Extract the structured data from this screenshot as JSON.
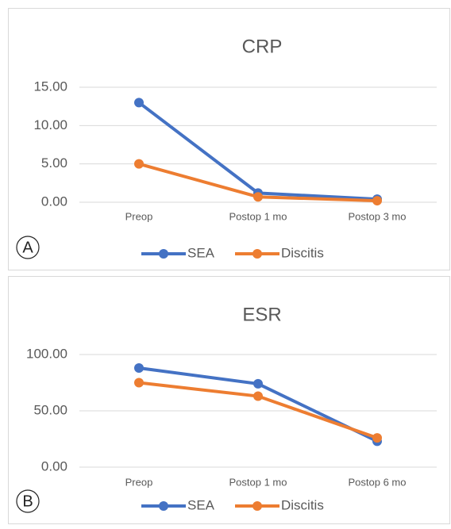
{
  "chart_data": [
    {
      "type": "line",
      "title": "CRP",
      "panel": "A",
      "categories": [
        "Preop",
        "Postop 1 mo",
        "Postop 3 mo"
      ],
      "series": [
        {
          "name": "SEA",
          "color": "#4472c4",
          "values": [
            13,
            1.2,
            0.4
          ]
        },
        {
          "name": "Discitis",
          "color": "#ed7d31",
          "values": [
            5,
            0.7,
            0.2
          ]
        }
      ],
      "ylim": [
        0,
        15
      ],
      "yticks": [
        {
          "value": 0,
          "label": "0.00"
        },
        {
          "value": 5,
          "label": "5.00"
        },
        {
          "value": 10,
          "label": "10.00"
        },
        {
          "value": 15,
          "label": "15.00"
        }
      ],
      "grid": true,
      "legend": "bottom"
    },
    {
      "type": "line",
      "title": "ESR",
      "panel": "B",
      "categories": [
        "Preop",
        "Postop 1 mo",
        "Postop 6 mo"
      ],
      "series": [
        {
          "name": "SEA",
          "color": "#4472c4",
          "values": [
            88,
            74,
            23
          ]
        },
        {
          "name": "Discitis",
          "color": "#ed7d31",
          "values": [
            75,
            63,
            26
          ]
        }
      ],
      "ylim": [
        0,
        100
      ],
      "yticks": [
        {
          "value": 0,
          "label": "0.00"
        },
        {
          "value": 50,
          "label": "50.00"
        },
        {
          "value": 100,
          "label": "100.00"
        }
      ],
      "grid": true,
      "legend": "bottom"
    }
  ]
}
